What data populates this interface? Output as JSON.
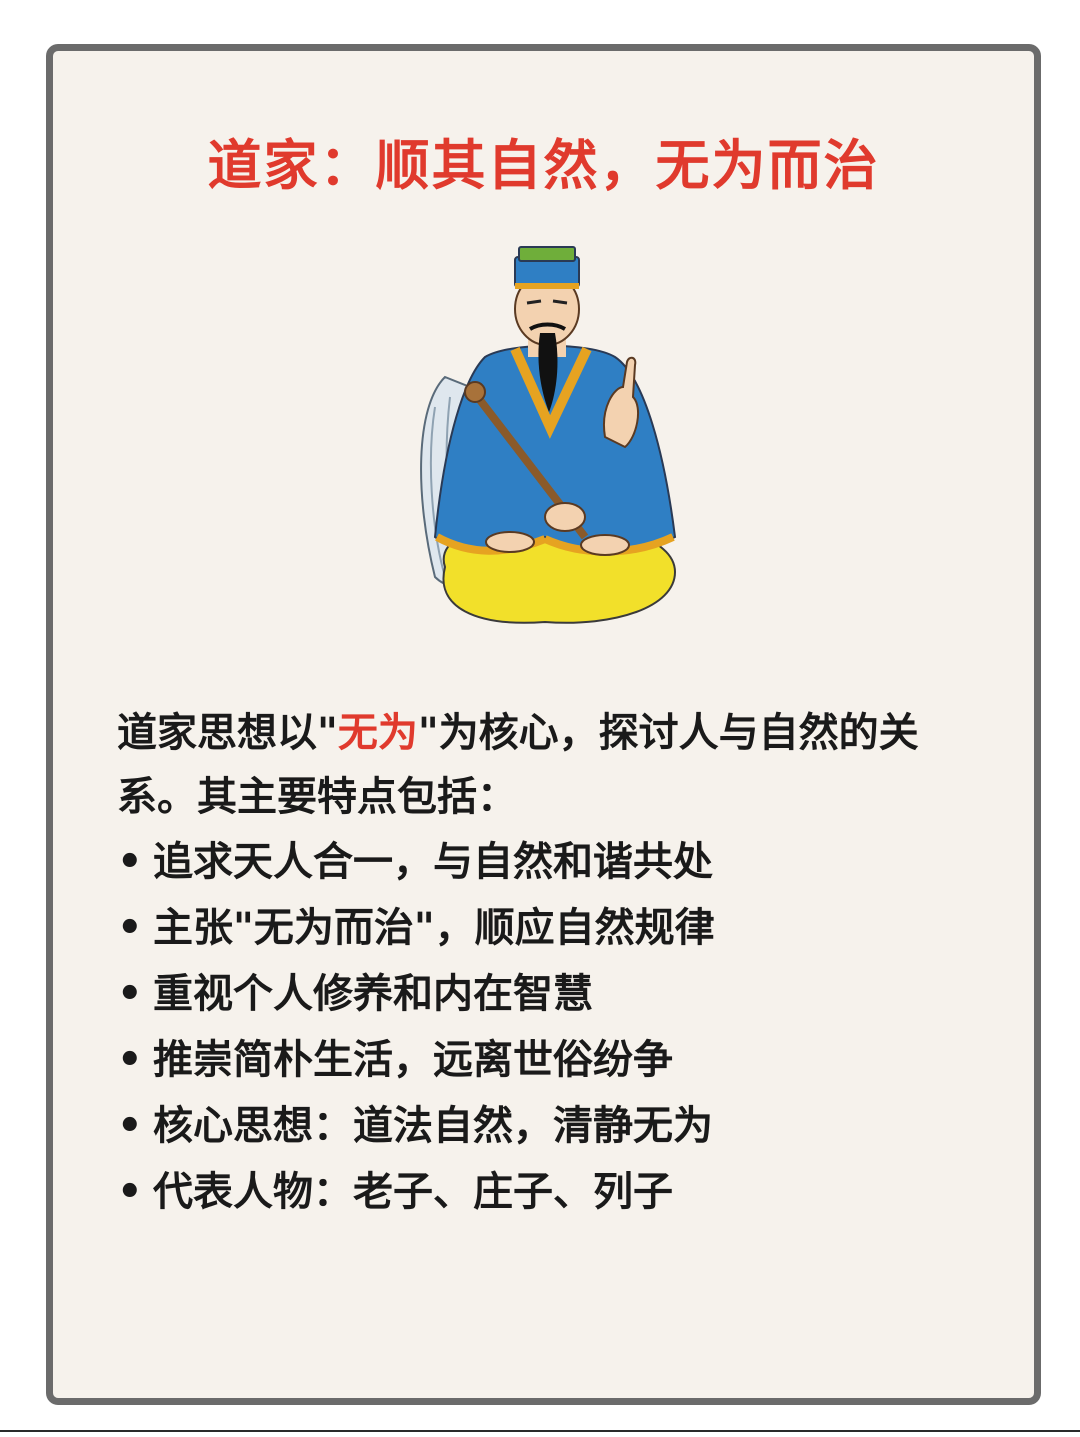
{
  "title": "道家：顺其自然，无为而治",
  "intro": {
    "before": "道家思想以\"",
    "highlight": "无为",
    "after": "\"为核心，探讨人与自然的关系。其主要特点包括："
  },
  "bullet_char": "•",
  "points": [
    "追求天人合一，与自然和谐共处",
    "主张\"无为而治\"，顺应自然规律",
    "重视个人修养和内在智慧",
    "推崇简朴生活，远离世俗纷争",
    "核心思想：道法自然，清静无为",
    "代表人物：老子、庄子、列子"
  ],
  "colors": {
    "accent": "#e03a2d",
    "card_bg": "#f6f2ec",
    "border": "#6b6b6b",
    "text": "#1a1a1a",
    "robe_blue": "#2f7fc4",
    "robe_trim": "#e6a321",
    "pants_yellow": "#f2e02a"
  },
  "illustration": {
    "icon": "seated-taoist-sage-illustration"
  }
}
